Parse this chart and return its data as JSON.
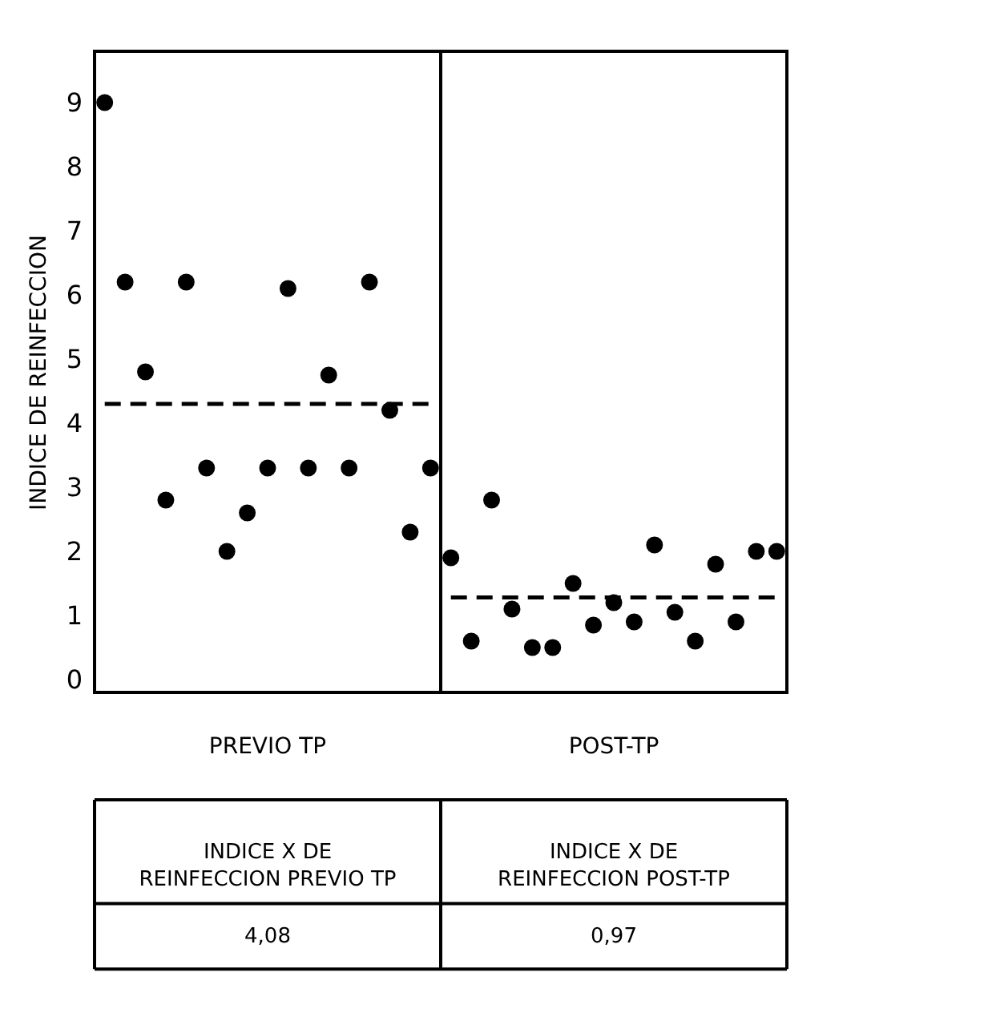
{
  "chart_data": {
    "type": "scatter",
    "ylabel": "INDICE DE REINFECCION",
    "categories": [
      null,
      null,
      null,
      null,
      null,
      null,
      null,
      null,
      null,
      null,
      null,
      null,
      null,
      null,
      null,
      null,
      null,
      null,
      null,
      null,
      null,
      null,
      null,
      null,
      null,
      null,
      null,
      null,
      null,
      null,
      null,
      null,
      null,
      null
    ],
    "ylim": [
      -0.2,
      9.8
    ],
    "yticks": [
      0,
      1,
      2,
      3,
      4,
      5,
      6,
      7,
      8,
      9
    ],
    "tick_labels": "y",
    "series": [
      {
        "type": "scatter",
        "marker": "circle",
        "color": "#000000",
        "values": [
          9.0,
          6.2,
          4.8,
          2.8,
          6.2,
          3.3,
          2.0,
          2.6,
          3.3,
          6.1,
          3.3,
          4.75,
          3.3,
          6.2,
          4.2,
          2.3,
          3.3,
          null,
          null,
          null,
          null,
          null,
          null,
          null,
          null,
          null,
          null,
          null,
          null,
          null,
          null,
          null,
          null,
          null
        ]
      },
      {
        "type": "scatter",
        "marker": "circle",
        "color": "#000000",
        "values": [
          null,
          null,
          null,
          null,
          null,
          null,
          null,
          null,
          null,
          null,
          null,
          null,
          null,
          null,
          null,
          null,
          null,
          1.9,
          0.6,
          2.8,
          1.1,
          0.5,
          0.5,
          1.5,
          0.85,
          1.2,
          0.9,
          2.1,
          1.05,
          0.6,
          1.8,
          0.9,
          2.0,
          2.0
        ]
      },
      {
        "type": "line",
        "color": "#000000",
        "line_style": "dashed",
        "values": [
          4.3,
          4.3,
          4.3,
          4.3,
          4.3,
          4.3,
          4.3,
          4.3,
          4.3,
          4.3,
          4.3,
          4.3,
          4.3,
          4.3,
          4.3,
          4.3,
          4.3,
          null,
          null,
          null,
          null,
          null,
          null,
          null,
          null,
          null,
          null,
          null,
          null,
          null,
          null,
          null,
          null,
          null
        ]
      },
      {
        "type": "line",
        "color": "#000000",
        "line_style": "dashed",
        "values": [
          null,
          null,
          null,
          null,
          null,
          null,
          null,
          null,
          null,
          null,
          null,
          null,
          null,
          null,
          null,
          null,
          null,
          1.28,
          1.28,
          1.28,
          1.28,
          1.28,
          1.28,
          1.28,
          1.28,
          1.28,
          1.28,
          1.28,
          1.28,
          1.28,
          1.28,
          1.28,
          1.28,
          1.28
        ]
      }
    ],
    "annotations": [
      "PREVIO TP",
      "POST-TP",
      "INDICE X DE\nREINFECCION PREVIO TP",
      "INDICE X DE\nREINFECCION POST-TP",
      "4,08",
      "0,97"
    ]
  }
}
